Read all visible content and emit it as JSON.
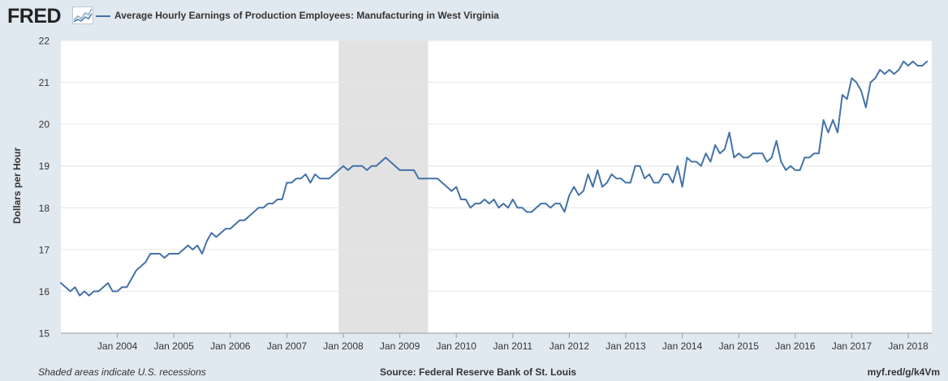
{
  "header": {
    "logo_text": "FRED",
    "title": "Average Hourly Earnings of Production Employees: Manufacturing in West Virginia"
  },
  "colors": {
    "series": "#4572a7",
    "recession": "#e2e2e2",
    "page_background": "#e1e9f0",
    "plot_background": "#ffffff",
    "grid": "#e6e6e6"
  },
  "footer": {
    "footnote": "Shaded areas indicate U.S. recessions",
    "source": "Source: Federal Reserve Bank of St. Louis",
    "short_url": "myf.red/g/k4Vm"
  },
  "chart_data": {
    "type": "line",
    "title": "Average Hourly Earnings of Production Employees: Manufacturing in West Virginia",
    "xlabel": "",
    "ylabel": "Dollars per Hour",
    "ylim": [
      15,
      22
    ],
    "yticks": [
      15,
      16,
      17,
      18,
      19,
      20,
      21,
      22
    ],
    "xlim": [
      "2003-01",
      "2018-06"
    ],
    "xticks": [
      {
        "date": "2004-01",
        "label": "Jan 2004"
      },
      {
        "date": "2005-01",
        "label": "Jan 2005"
      },
      {
        "date": "2006-01",
        "label": "Jan 2006"
      },
      {
        "date": "2007-01",
        "label": "Jan 2007"
      },
      {
        "date": "2008-01",
        "label": "Jan 2008"
      },
      {
        "date": "2009-01",
        "label": "Jan 2009"
      },
      {
        "date": "2010-01",
        "label": "Jan 2010"
      },
      {
        "date": "2011-01",
        "label": "Jan 2011"
      },
      {
        "date": "2012-01",
        "label": "Jan 2012"
      },
      {
        "date": "2013-01",
        "label": "Jan 2013"
      },
      {
        "date": "2014-01",
        "label": "Jan 2014"
      },
      {
        "date": "2015-01",
        "label": "Jan 2015"
      },
      {
        "date": "2016-01",
        "label": "Jan 2016"
      },
      {
        "date": "2017-01",
        "label": "Jan 2017"
      },
      {
        "date": "2018-01",
        "label": "Jan 2018"
      }
    ],
    "grid": true,
    "legend": "top-left",
    "recessions": [
      {
        "start": "2007-12",
        "end": "2009-06"
      }
    ],
    "series": [
      {
        "name": "Average Hourly Earnings of Production Employees: Manufacturing in West Virginia",
        "start": "2003-01",
        "frequency": "monthly",
        "values": [
          16.2,
          16.1,
          16.0,
          16.1,
          15.9,
          16.0,
          15.9,
          16.0,
          16.0,
          16.1,
          16.2,
          16.0,
          16.0,
          16.1,
          16.1,
          16.3,
          16.5,
          16.6,
          16.7,
          16.9,
          16.9,
          16.9,
          16.8,
          16.9,
          16.9,
          16.9,
          17.0,
          17.1,
          17.0,
          17.1,
          16.9,
          17.2,
          17.4,
          17.3,
          17.4,
          17.5,
          17.5,
          17.6,
          17.7,
          17.7,
          17.8,
          17.9,
          18.0,
          18.0,
          18.1,
          18.1,
          18.2,
          18.2,
          18.6,
          18.6,
          18.7,
          18.7,
          18.8,
          18.6,
          18.8,
          18.7,
          18.7,
          18.7,
          18.8,
          18.9,
          19.0,
          18.9,
          19.0,
          19.0,
          19.0,
          18.9,
          19.0,
          19.0,
          19.1,
          19.2,
          19.1,
          19.0,
          18.9,
          18.9,
          18.9,
          18.9,
          18.7,
          18.7,
          18.7,
          18.7,
          18.7,
          18.6,
          18.5,
          18.4,
          18.5,
          18.2,
          18.2,
          18.0,
          18.1,
          18.1,
          18.2,
          18.1,
          18.2,
          18.0,
          18.1,
          18.0,
          18.2,
          18.0,
          18.0,
          17.9,
          17.9,
          18.0,
          18.1,
          18.1,
          18.0,
          18.1,
          18.1,
          17.9,
          18.3,
          18.5,
          18.3,
          18.4,
          18.8,
          18.5,
          18.9,
          18.5,
          18.6,
          18.8,
          18.7,
          18.7,
          18.6,
          18.6,
          19.0,
          19.0,
          18.7,
          18.8,
          18.6,
          18.6,
          18.8,
          18.8,
          18.6,
          19.0,
          18.5,
          19.2,
          19.1,
          19.1,
          19.0,
          19.3,
          19.1,
          19.5,
          19.3,
          19.4,
          19.8,
          19.2,
          19.3,
          19.2,
          19.2,
          19.3,
          19.3,
          19.3,
          19.1,
          19.2,
          19.6,
          19.1,
          18.9,
          19.0,
          18.9,
          18.9,
          19.2,
          19.2,
          19.3,
          19.3,
          20.1,
          19.8,
          20.1,
          19.8,
          20.7,
          20.6,
          21.1,
          21.0,
          20.8,
          20.4,
          21.0,
          21.1,
          21.3,
          21.2,
          21.3,
          21.2,
          21.3,
          21.5,
          21.4,
          21.5,
          21.4,
          21.4,
          21.5
        ]
      }
    ]
  }
}
